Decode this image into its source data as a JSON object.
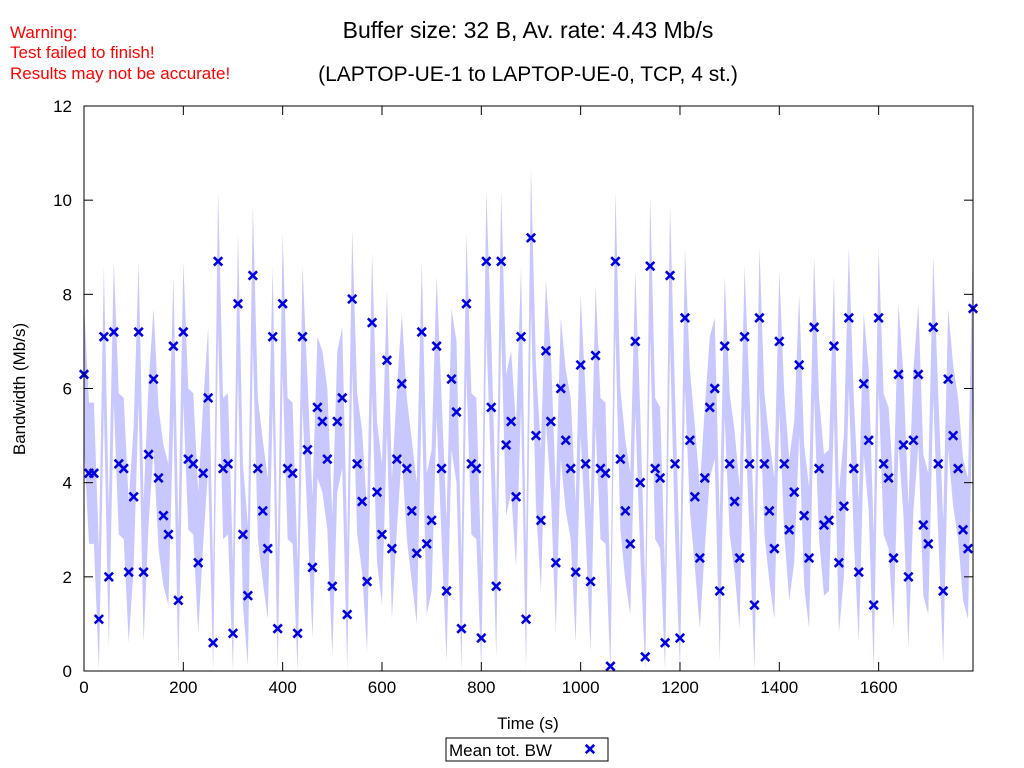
{
  "warning": {
    "lines": [
      "Warning:",
      "Test failed to finish!",
      "Results may not be accurate!"
    ],
    "color": "#ff0000"
  },
  "title": {
    "line1": "Buffer size: 32 B, Av. rate: 4.43 Mb/s",
    "line2": "(LAPTOP-UE-1 to LAPTOP-UE-0, TCP, 4 st.)"
  },
  "chart_data": {
    "type": "scatter",
    "xlabel": "Time (s)",
    "ylabel": "Bandwidth (Mb/s)",
    "xlim": [
      0,
      1790
    ],
    "ylim": [
      0,
      12
    ],
    "xticks": [
      0,
      200,
      400,
      600,
      800,
      1000,
      1200,
      1400,
      1600
    ],
    "yticks": [
      0,
      2,
      4,
      6,
      8,
      10,
      12
    ],
    "grid": false,
    "legend": {
      "position": "bottom-center"
    },
    "colors": {
      "marker": "#0000e0",
      "band": "#c8c8ff"
    },
    "series": [
      {
        "name": "Mean tot. BW",
        "x": [
          0,
          10,
          20,
          30,
          40,
          50,
          60,
          70,
          80,
          90,
          100,
          110,
          120,
          130,
          140,
          150,
          160,
          170,
          180,
          190,
          200,
          210,
          220,
          230,
          240,
          250,
          260,
          270,
          280,
          290,
          300,
          310,
          320,
          330,
          340,
          350,
          360,
          370,
          380,
          390,
          400,
          410,
          420,
          430,
          440,
          450,
          460,
          470,
          480,
          490,
          500,
          510,
          520,
          530,
          540,
          550,
          560,
          570,
          580,
          590,
          600,
          610,
          620,
          630,
          640,
          650,
          660,
          670,
          680,
          690,
          700,
          710,
          720,
          730,
          740,
          750,
          760,
          770,
          780,
          790,
          800,
          810,
          820,
          830,
          840,
          850,
          860,
          870,
          880,
          890,
          900,
          910,
          920,
          930,
          940,
          950,
          960,
          970,
          980,
          990,
          1000,
          1010,
          1020,
          1030,
          1040,
          1050,
          1060,
          1070,
          1080,
          1090,
          1100,
          1110,
          1120,
          1130,
          1140,
          1150,
          1160,
          1170,
          1180,
          1190,
          1200,
          1210,
          1220,
          1230,
          1240,
          1250,
          1260,
          1270,
          1280,
          1290,
          1300,
          1310,
          1320,
          1330,
          1340,
          1350,
          1360,
          1370,
          1380,
          1390,
          1400,
          1410,
          1420,
          1430,
          1440,
          1450,
          1460,
          1470,
          1480,
          1490,
          1500,
          1510,
          1520,
          1530,
          1540,
          1550,
          1560,
          1570,
          1580,
          1590,
          1600,
          1610,
          1620,
          1630,
          1640,
          1650,
          1660,
          1670,
          1680,
          1690,
          1700,
          1710,
          1720,
          1730,
          1740,
          1750,
          1760,
          1770,
          1780,
          1790
        ],
        "y": [
          6.3,
          4.2,
          4.2,
          1.1,
          7.1,
          2.0,
          7.2,
          4.4,
          4.3,
          2.1,
          3.7,
          7.2,
          2.1,
          4.6,
          6.2,
          4.1,
          3.3,
          2.9,
          6.9,
          1.5,
          7.2,
          4.5,
          4.4,
          2.3,
          4.2,
          5.8,
          0.6,
          8.7,
          4.3,
          4.4,
          0.8,
          7.8,
          2.9,
          1.6,
          8.4,
          4.3,
          3.4,
          2.6,
          7.1,
          0.9,
          7.8,
          4.3,
          4.2,
          0.8,
          7.1,
          4.7,
          2.2,
          5.6,
          5.3,
          4.5,
          1.8,
          5.3,
          5.8,
          1.2,
          7.9,
          4.4,
          3.6,
          1.9,
          7.4,
          3.8,
          2.9,
          6.6,
          2.6,
          4.5,
          6.1,
          4.3,
          3.4,
          2.5,
          7.2,
          2.7,
          3.2,
          6.9,
          4.3,
          1.7,
          6.2,
          5.5,
          0.9,
          7.8,
          4.4,
          4.3,
          0.7,
          8.7,
          5.6,
          1.8,
          8.7,
          4.8,
          5.3,
          3.7,
          7.1,
          1.1,
          9.2,
          5.0,
          3.2,
          6.8,
          5.3,
          2.3,
          6.0,
          4.9,
          4.3,
          2.1,
          6.5,
          4.4,
          1.9,
          6.7,
          4.3,
          4.2,
          0.1,
          8.7,
          4.5,
          3.4,
          2.7,
          7.0,
          4.0,
          0.3,
          8.6,
          4.3,
          4.1,
          0.6,
          8.4,
          4.4,
          0.7,
          7.5,
          4.9,
          3.7,
          2.4,
          4.1,
          5.6,
          6.0,
          1.7,
          6.9,
          4.4,
          3.6,
          2.4,
          7.1,
          4.4,
          1.4,
          7.5,
          4.4,
          3.4,
          2.6,
          7.0,
          4.4,
          3.0,
          3.8,
          6.5,
          3.3,
          2.4,
          7.3,
          4.3,
          3.1,
          3.2,
          6.9,
          2.3,
          3.5,
          7.5,
          4.3,
          2.1,
          6.1,
          4.9,
          1.4,
          7.5,
          4.4,
          4.1,
          2.4,
          6.3,
          4.8,
          2.0,
          4.9,
          6.3,
          3.1,
          2.7,
          7.3,
          4.4,
          1.7,
          6.2,
          5.0,
          4.3,
          3.0,
          2.6,
          7.7
        ],
        "band_half_width": 1.5
      }
    ]
  }
}
